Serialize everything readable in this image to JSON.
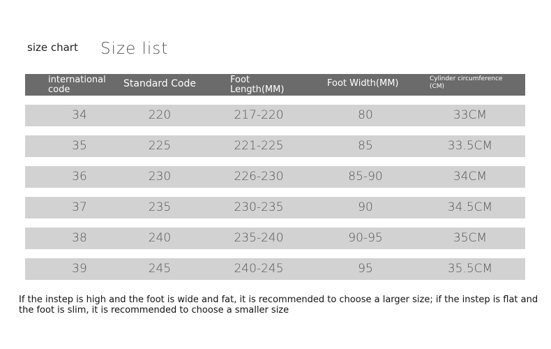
{
  "title": "size chart",
  "subtitle": "Size list",
  "headers": [
    "international code",
    "Standard Code",
    "Foot Length(MM)",
    "Foot Width(MM)",
    "Cylinder circumference (CM)"
  ],
  "rows": [
    [
      "34",
      "220",
      "217-220",
      "80",
      "33CM"
    ],
    [
      "35",
      "225",
      "221-225",
      "85",
      "33.5CM"
    ],
    [
      "36",
      "230",
      "226-230",
      "85-90",
      "34CM"
    ],
    [
      "37",
      "235",
      "230-235",
      "90",
      "34.5CM"
    ],
    [
      "38",
      "240",
      "235-240",
      "90-95",
      "35CM"
    ],
    [
      "39",
      "245",
      "240-245",
      "95",
      "35.5CM"
    ]
  ],
  "note": "If the instep is high and the foot is wide and fat, it is recommended to choose a larger size; if the instep is flat and the foot is slim, it is recommended to choose a smaller size"
}
